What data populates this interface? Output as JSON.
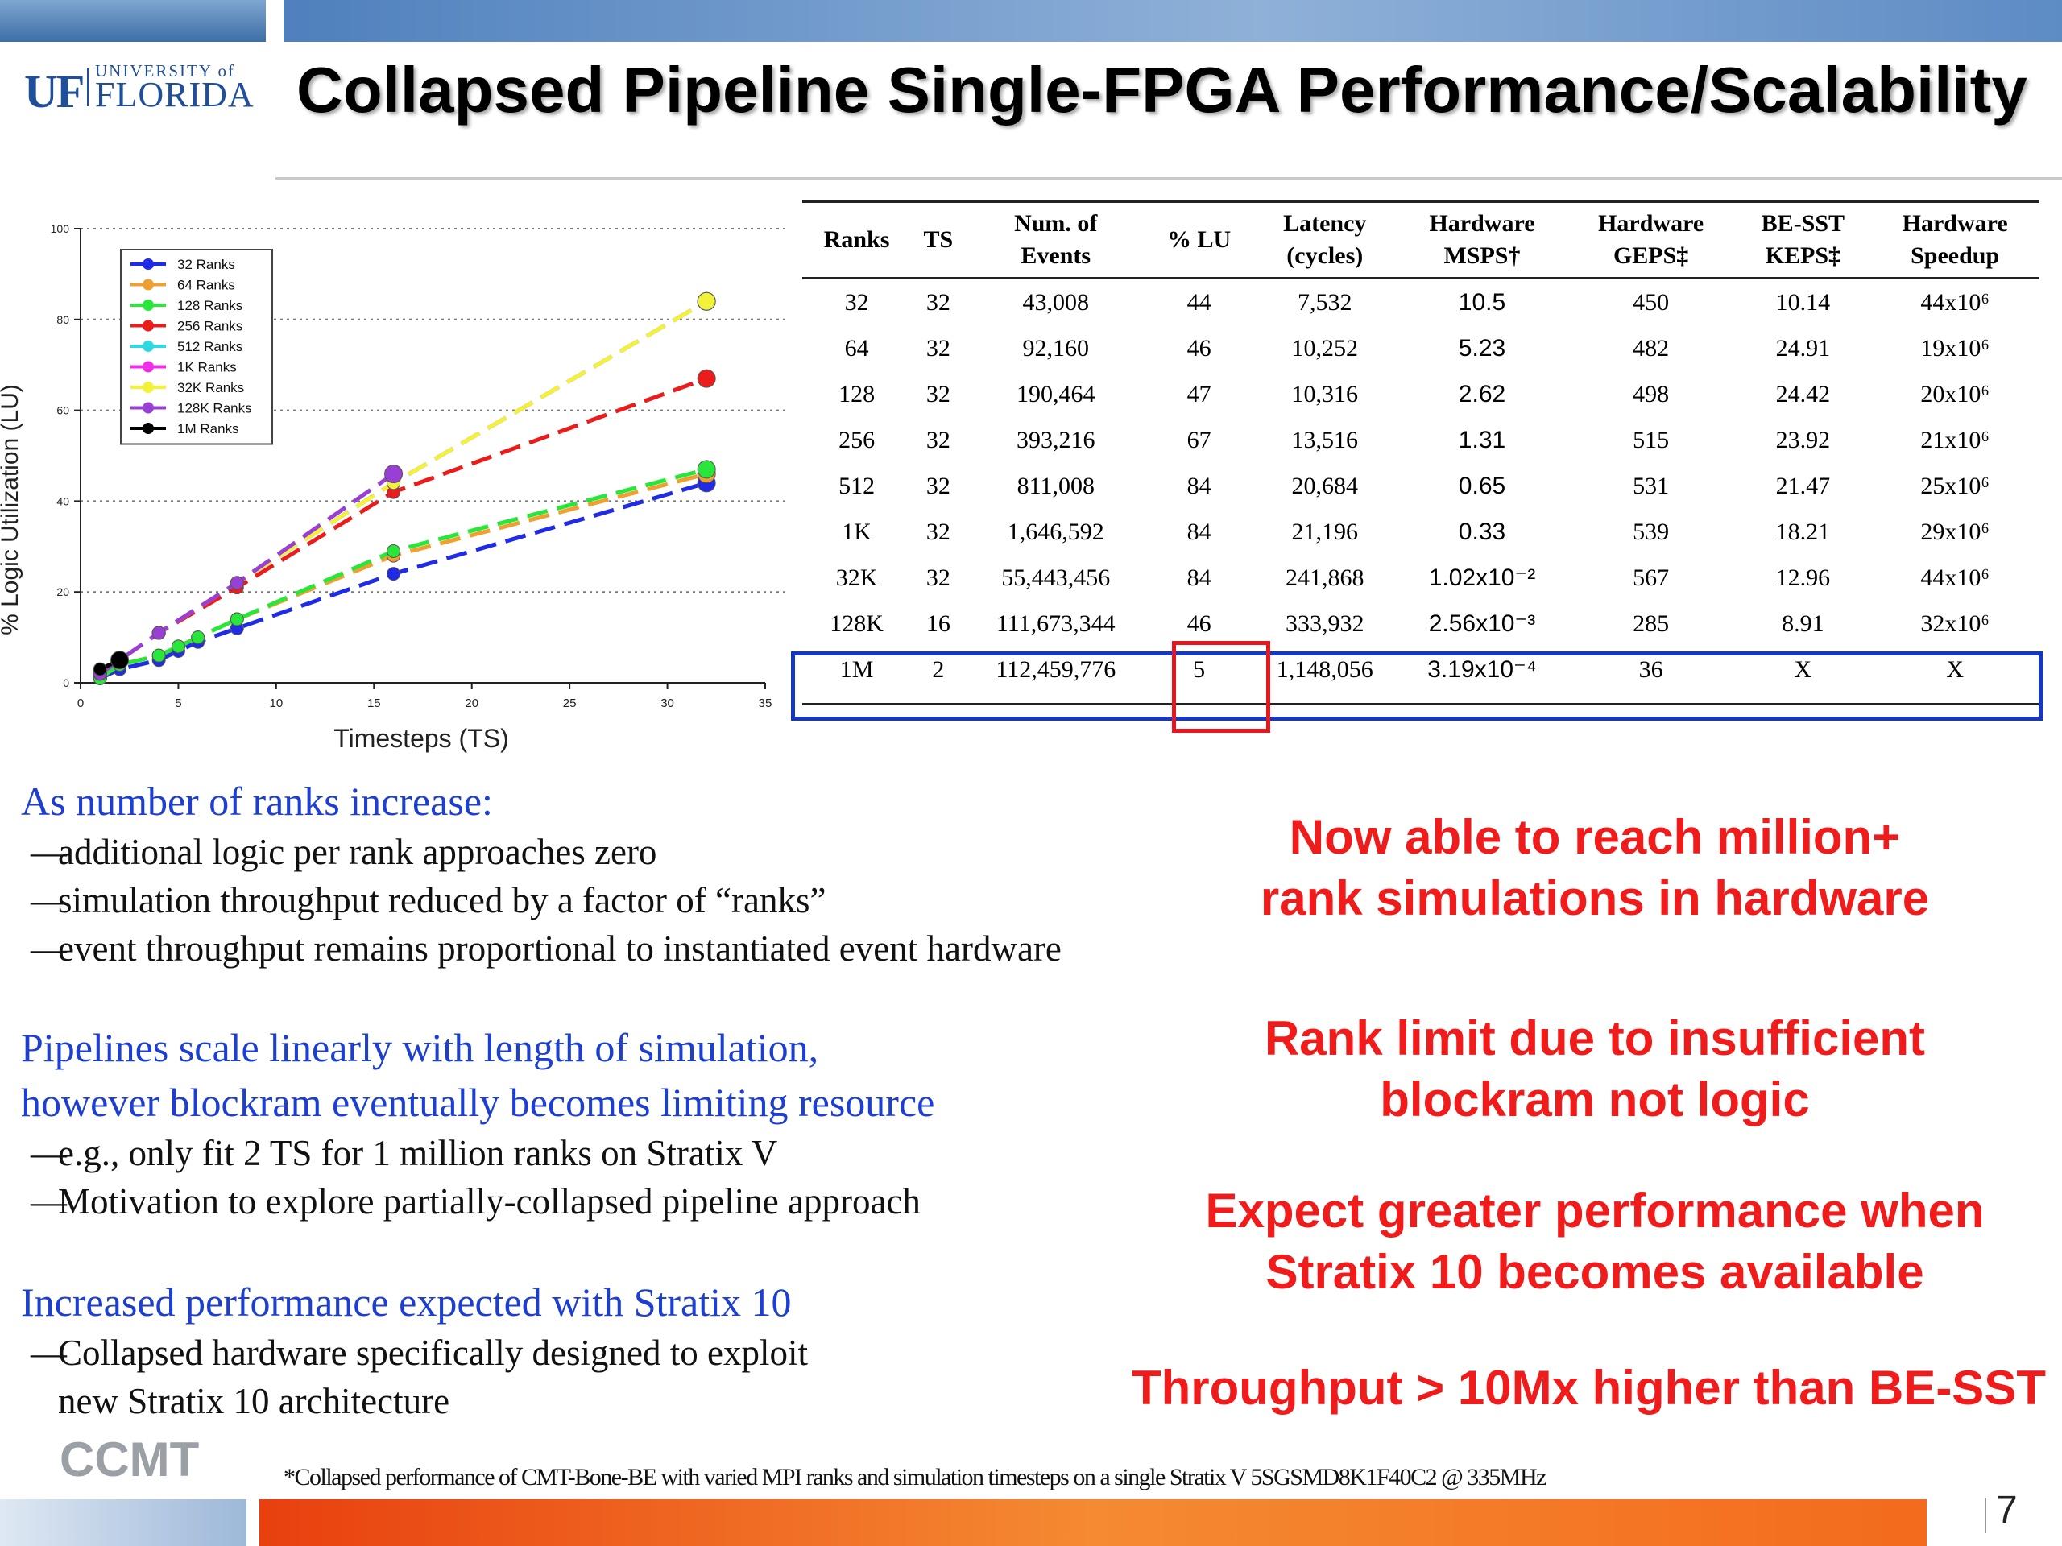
{
  "header": {
    "logo_uf": "UF",
    "logo_university_of": "UNIVERSITY of",
    "logo_florida": "FLORIDA",
    "title": "Collapsed Pipeline Single-FPGA Performance/Scalability"
  },
  "chart_data": {
    "type": "line",
    "xlabel": "Timesteps (TS)",
    "ylabel": "% Logic Utilization (LU)",
    "xlim": [
      0,
      35
    ],
    "ylim": [
      0,
      100
    ],
    "x_ticks": [
      "0",
      "5",
      "10",
      "15",
      "20",
      "25",
      "30",
      "35"
    ],
    "y_ticks": [
      "0",
      "20",
      "40",
      "60",
      "80",
      "100"
    ],
    "grid": "horizontal dotted",
    "legend": "top-left",
    "series": [
      {
        "name": "32 Ranks",
        "color": "#1f2be6",
        "x": [
          1,
          2,
          4,
          5,
          6,
          8,
          16,
          32
        ],
        "y": [
          1,
          3,
          5,
          7,
          9,
          12,
          24,
          44
        ]
      },
      {
        "name": "64 Ranks",
        "color": "#f0a030",
        "x": [
          1,
          2,
          4,
          5,
          6,
          8,
          16,
          32
        ],
        "y": [
          1,
          4,
          6,
          8,
          10,
          14,
          28,
          46
        ]
      },
      {
        "name": "128 Ranks",
        "color": "#29e63a",
        "x": [
          1,
          2,
          4,
          5,
          6,
          8,
          16,
          32
        ],
        "y": [
          1,
          4,
          6,
          8,
          10,
          14,
          29,
          47
        ]
      },
      {
        "name": "256 Ranks",
        "color": "#ea1c1c",
        "x": [
          1,
          2,
          4,
          8,
          16,
          32
        ],
        "y": [
          2,
          5,
          11,
          21,
          42,
          67
        ]
      },
      {
        "name": "512 Ranks",
        "color": "#30d8e0",
        "x": [
          1,
          2,
          4,
          8,
          16,
          32
        ],
        "y": [
          2,
          5,
          11,
          22,
          44,
          84
        ]
      },
      {
        "name": "1K Ranks",
        "color": "#ee2ee8",
        "x": [
          1,
          2,
          4,
          8,
          16,
          32
        ],
        "y": [
          2,
          5,
          11,
          22,
          44,
          84
        ]
      },
      {
        "name": "32K Ranks",
        "color": "#f2f23a",
        "x": [
          1,
          2,
          4,
          8,
          16,
          32
        ],
        "y": [
          2,
          5,
          11,
          22,
          44,
          84
        ]
      },
      {
        "name": "128K Ranks",
        "color": "#9a3fd6",
        "x": [
          1,
          2,
          4,
          8,
          16
        ],
        "y": [
          2,
          5,
          11,
          22,
          46
        ]
      },
      {
        "name": "1M Ranks",
        "color": "#000000",
        "x": [
          1,
          2
        ],
        "y": [
          3,
          5
        ]
      }
    ]
  },
  "table": {
    "headers": [
      [
        "Ranks"
      ],
      [
        "TS"
      ],
      [
        "Num. of",
        "Events"
      ],
      [
        "% LU"
      ],
      [
        "Latency",
        "(cycles)"
      ],
      [
        "Hardware",
        "MSPS†"
      ],
      [
        "Hardware",
        "GEPS‡"
      ],
      [
        "BE-SST",
        "KEPS‡"
      ],
      [
        "Hardware",
        "Speedup"
      ]
    ],
    "rows": [
      [
        "32",
        "32",
        "43,008",
        "44",
        "7,532",
        "10.5",
        "450",
        "10.14",
        "44x10⁶"
      ],
      [
        "64",
        "32",
        "92,160",
        "46",
        "10,252",
        "5.23",
        "482",
        "24.91",
        "19x10⁶"
      ],
      [
        "128",
        "32",
        "190,464",
        "47",
        "10,316",
        "2.62",
        "498",
        "24.42",
        "20x10⁶"
      ],
      [
        "256",
        "32",
        "393,216",
        "67",
        "13,516",
        "1.31",
        "515",
        "23.92",
        "21x10⁶"
      ],
      [
        "512",
        "32",
        "811,008",
        "84",
        "20,684",
        "0.65",
        "531",
        "21.47",
        "25x10⁶"
      ],
      [
        "1K",
        "32",
        "1,646,592",
        "84",
        "21,196",
        "0.33",
        "539",
        "18.21",
        "29x10⁶"
      ],
      [
        "32K",
        "32",
        "55,443,456",
        "84",
        "241,868",
        "1.02x10⁻²",
        "567",
        "12.96",
        "44x10⁶"
      ],
      [
        "128K",
        "16",
        "111,673,344",
        "46",
        "333,932",
        "2.56x10⁻³",
        "285",
        "8.91",
        "32x10⁶"
      ],
      [
        "1M",
        "2",
        "112,459,776",
        "5",
        "1,148,056",
        "3.19x10⁻⁴",
        "36",
        "X",
        "X"
      ]
    ]
  },
  "left": {
    "h1": "As number of ranks increase:",
    "b1": [
      "additional logic per rank approaches zero",
      "simulation throughput reduced by a factor of “ranks”",
      "event throughput remains proportional to instantiated event hardware"
    ],
    "h2a": "Pipelines scale linearly with length of simulation,",
    "h2b": "however blockram eventually becomes limiting resource",
    "b2": [
      "e.g., only fit 2 TS for 1 million ranks on Stratix V",
      "Motivation to explore partially-collapsed pipeline approach"
    ],
    "h3": "Increased performance expected with Stratix 10",
    "b3a": "Collapsed hardware specifically designed to exploit",
    "b3b": "new Stratix 10 architecture"
  },
  "right": {
    "c1a": "Now able to reach million+",
    "c1b": "rank simulations in hardware",
    "c2a": "Rank limit due to insufficient",
    "c2b": "blockram not logic",
    "c3a": "Expect greater performance when",
    "c3b": "Stratix 10 becomes available",
    "c4": "Throughput > 10Mx higher than BE-SST"
  },
  "footer": {
    "ccmt": "CCMT",
    "footnote": "*Collapsed performance of CMT-Bone-BE with varied MPI ranks and simulation timesteps on a single Stratix V 5SGSMD8K1F40C2 @ 335MHz",
    "page": "7"
  }
}
